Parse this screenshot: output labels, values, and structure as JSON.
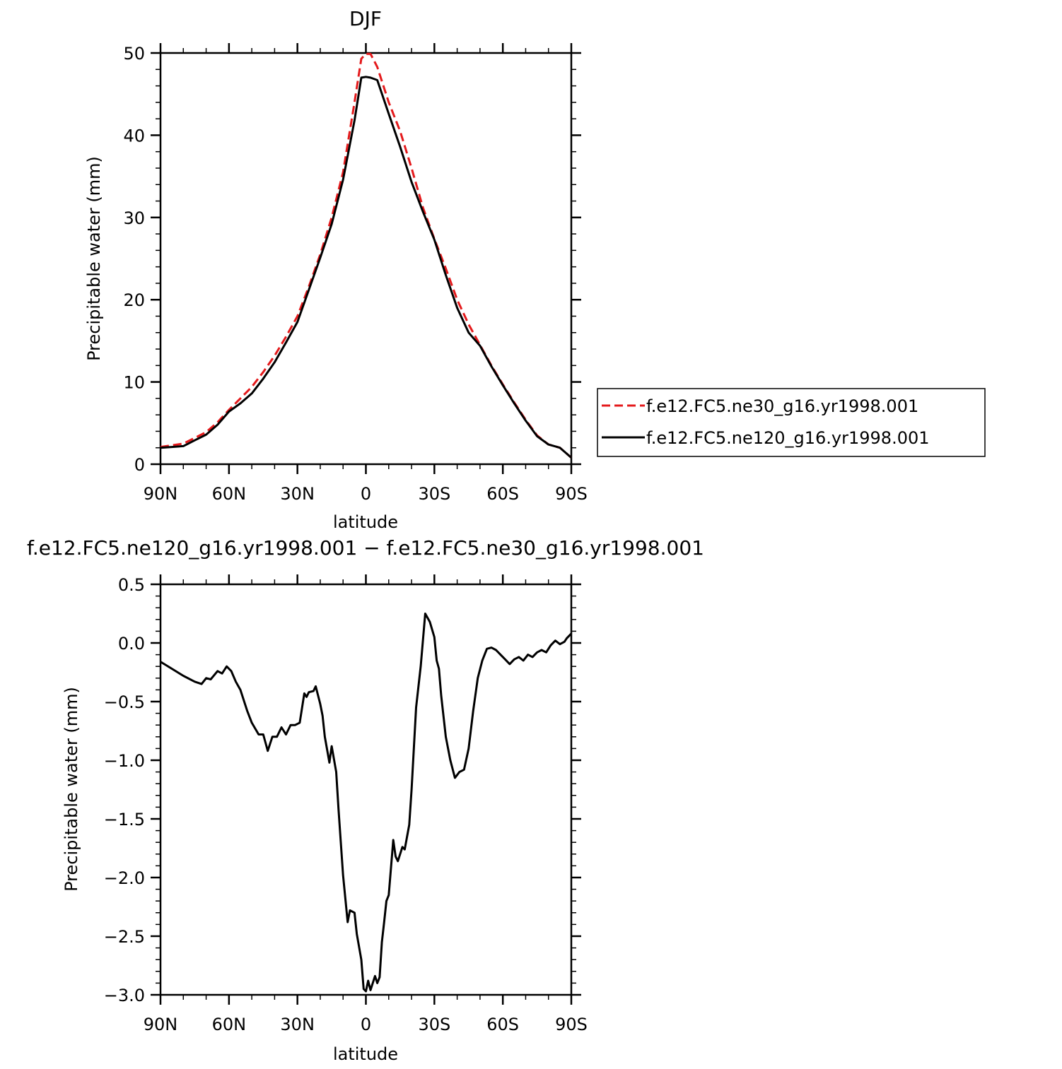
{
  "colors": {
    "ne30": "#e41a1c",
    "ne120": "#000000",
    "axis": "#000000"
  },
  "chart_data": [
    {
      "type": "line",
      "title": "DJF",
      "xlabel": "latitude",
      "ylabel": "Precipitable water (mm)",
      "xlim": [
        90,
        -90
      ],
      "ylim": [
        0,
        50
      ],
      "xticks": [
        90,
        60,
        30,
        0,
        -30,
        -60,
        -90
      ],
      "xtick_labels": [
        "90N",
        "60N",
        "30N",
        "0",
        "30S",
        "60S",
        "90S"
      ],
      "yticks": [
        0,
        10,
        20,
        30,
        40,
        50
      ],
      "ytick_labels": [
        "0",
        "10",
        "20",
        "30",
        "40",
        "50"
      ],
      "grid": false,
      "legend_position": "right",
      "x": [
        90,
        85,
        80,
        75,
        70,
        65,
        60,
        55,
        50,
        45,
        40,
        35,
        30,
        25,
        20,
        15,
        10,
        5,
        2,
        0,
        -2,
        -5,
        -10,
        -15,
        -20,
        -25,
        -30,
        -35,
        -40,
        -45,
        -50,
        -55,
        -60,
        -65,
        -70,
        -75,
        -80,
        -85,
        -90
      ],
      "series": [
        {
          "name": "f.e12.FC5.ne30_g16.yr1998.001",
          "style": "dashed",
          "color": "#e41a1c",
          "values": [
            2.1,
            2.3,
            2.5,
            3.2,
            3.9,
            5.1,
            6.6,
            8.0,
            9.4,
            11.2,
            13.2,
            15.5,
            18.0,
            21.6,
            25.5,
            30.0,
            35.5,
            44.0,
            49.3,
            49.9,
            49.9,
            48.3,
            44.0,
            40.5,
            36.0,
            31.2,
            27.4,
            23.8,
            20.0,
            17.0,
            14.5,
            12.0,
            9.7,
            7.5,
            5.4,
            3.5,
            2.4,
            2.0,
            0.8
          ]
        },
        {
          "name": "f.e12.FC5.ne120_g16.yr1998.001",
          "style": "solid",
          "color": "#000000",
          "values": [
            2.0,
            2.1,
            2.2,
            2.9,
            3.6,
            4.8,
            6.4,
            7.4,
            8.6,
            10.4,
            12.4,
            14.8,
            17.3,
            21.2,
            25.1,
            29.2,
            34.6,
            41.8,
            47.0,
            47.1,
            47.0,
            46.7,
            42.6,
            38.6,
            34.3,
            30.7,
            27.3,
            23.0,
            19.0,
            16.0,
            14.4,
            11.9,
            9.6,
            7.4,
            5.3,
            3.4,
            2.4,
            2.0,
            0.8
          ]
        }
      ]
    },
    {
      "type": "line",
      "title": "f.e12.FC5.ne120_g16.yr1998.001 − f.e12.FC5.ne30_g16.yr1998.001",
      "xlabel": "latitude",
      "ylabel": "Precipitable water (mm)",
      "xlim": [
        90,
        -90
      ],
      "ylim": [
        -3.0,
        0.5
      ],
      "xticks": [
        90,
        60,
        30,
        0,
        -30,
        -60,
        -90
      ],
      "xtick_labels": [
        "90N",
        "60N",
        "30N",
        "0",
        "30S",
        "60S",
        "90S"
      ],
      "yticks": [
        0.5,
        0.0,
        -0.5,
        -1.0,
        -1.5,
        -2.0,
        -2.5,
        -3.0
      ],
      "ytick_labels": [
        "0.5",
        "0.0",
        "−0.5",
        "−1.0",
        "−1.5",
        "−2.0",
        "−2.5",
        "−3.0"
      ],
      "grid": false,
      "x": [
        90,
        85,
        80,
        75,
        72,
        70,
        68,
        65,
        63,
        61,
        59,
        57,
        55,
        52,
        50,
        47,
        45,
        43,
        41,
        39,
        37,
        35,
        33,
        31,
        29,
        27,
        26,
        25,
        23,
        22,
        20,
        19,
        18,
        16,
        15,
        13,
        12,
        11,
        10,
        8,
        7,
        5,
        4,
        2,
        1,
        0,
        -1,
        -2,
        -3,
        -4,
        -5,
        -6,
        -7,
        -8,
        -9,
        -10,
        -12,
        -13,
        -14,
        -16,
        -17,
        -19,
        -20,
        -22,
        -24,
        -26,
        -28,
        -30,
        -31,
        -32,
        -33,
        -35,
        -37,
        -39,
        -41,
        -43,
        -45,
        -47,
        -49,
        -51,
        -53,
        -55,
        -57,
        -59,
        -61,
        -63,
        -65,
        -67,
        -69,
        -71,
        -73,
        -75,
        -77,
        -79,
        -81,
        -83,
        -85,
        -87,
        -88,
        -90
      ],
      "series": [
        {
          "name": "f.e12.FC5.ne120_g16.yr1998.001 − f.e12.FC5.ne30_g16.yr1998.001",
          "style": "solid",
          "color": "#000000",
          "values": [
            -0.16,
            -0.22,
            -0.28,
            -0.33,
            -0.35,
            -0.3,
            -0.31,
            -0.24,
            -0.26,
            -0.2,
            -0.24,
            -0.33,
            -0.4,
            -0.58,
            -0.68,
            -0.78,
            -0.78,
            -0.92,
            -0.8,
            -0.8,
            -0.72,
            -0.78,
            -0.7,
            -0.7,
            -0.68,
            -0.43,
            -0.46,
            -0.42,
            -0.41,
            -0.37,
            -0.52,
            -0.62,
            -0.8,
            -1.02,
            -0.88,
            -1.1,
            -1.42,
            -1.7,
            -1.98,
            -2.38,
            -2.28,
            -2.3,
            -2.48,
            -2.7,
            -2.95,
            -2.97,
            -2.88,
            -2.96,
            -2.9,
            -2.84,
            -2.9,
            -2.85,
            -2.55,
            -2.38,
            -2.2,
            -2.15,
            -1.68,
            -1.82,
            -1.86,
            -1.74,
            -1.76,
            -1.55,
            -1.25,
            -0.55,
            -0.2,
            0.25,
            0.18,
            0.05,
            -0.15,
            -0.22,
            -0.45,
            -0.8,
            -1.0,
            -1.15,
            -1.1,
            -1.08,
            -0.9,
            -0.58,
            -0.3,
            -0.15,
            -0.05,
            -0.04,
            -0.06,
            -0.1,
            -0.14,
            -0.18,
            -0.14,
            -0.12,
            -0.15,
            -0.1,
            -0.12,
            -0.08,
            -0.06,
            -0.08,
            -0.02,
            0.02,
            -0.01,
            0.01,
            0.04,
            0.08
          ]
        }
      ]
    }
  ]
}
